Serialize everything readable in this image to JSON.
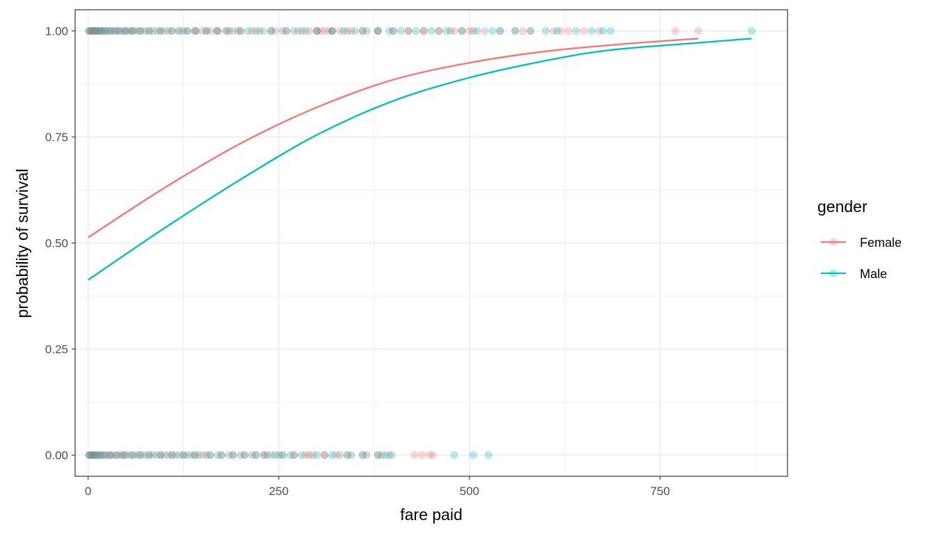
{
  "chart_data": {
    "type": "scatter",
    "title": "",
    "xlabel": "fare paid",
    "ylabel": "probability of survival",
    "xlim": [
      -17,
      917
    ],
    "ylim": [
      -0.05,
      1.05
    ],
    "x_ticks": [
      0,
      250,
      500,
      750
    ],
    "x_tick_labels": [
      "0",
      "250",
      "500",
      "750"
    ],
    "y_ticks": [
      0,
      0.25,
      0.5,
      0.75,
      1
    ],
    "y_tick_labels": [
      "0.00",
      "0.25",
      "0.50",
      "0.75",
      "1.00"
    ],
    "grid": true,
    "legend": {
      "title": "gender",
      "placement": "right"
    },
    "colors": {
      "Female": "#F8766D",
      "Male": "#00BFC4",
      "overlap": "#808080"
    },
    "series": [
      {
        "name": "Female",
        "color": "#F8766D",
        "fit_curve": {
          "x": [
            0,
            100,
            200,
            300,
            400,
            500,
            600,
            700,
            800
          ],
          "y": [
            0.513,
            0.63,
            0.735,
            0.82,
            0.885,
            0.925,
            0.952,
            0.969,
            0.982
          ]
        },
        "points_survived_x": [
          2,
          5,
          8,
          10,
          12,
          15,
          20,
          25,
          30,
          35,
          40,
          45,
          50,
          55,
          60,
          70,
          80,
          90,
          100,
          110,
          120,
          130,
          140,
          150,
          160,
          170,
          180,
          190,
          200,
          215,
          230,
          245,
          260,
          275,
          290,
          300,
          305,
          310,
          315,
          320,
          330,
          345,
          360,
          380,
          400,
          420,
          440,
          460,
          480,
          500,
          520,
          540,
          560,
          570,
          580,
          610,
          620,
          630,
          650,
          670,
          770,
          800
        ],
        "points_died_x": [
          2,
          5,
          8,
          12,
          18,
          25,
          30,
          40,
          45,
          50,
          60,
          70,
          80,
          90,
          100,
          110,
          120,
          130,
          140,
          150,
          160,
          175,
          190,
          205,
          220,
          232,
          240,
          255,
          270,
          285,
          295,
          310,
          325,
          340,
          360,
          380,
          395,
          428,
          438,
          448,
          452
        ]
      },
      {
        "name": "Male",
        "color": "#00BFC4",
        "fit_curve": {
          "x": [
            0,
            100,
            200,
            300,
            400,
            500,
            600,
            685,
            800,
            870
          ],
          "y": [
            0.413,
            0.535,
            0.65,
            0.755,
            0.835,
            0.89,
            0.93,
            0.955,
            0.972,
            0.982
          ]
        },
        "points_survived_x": [
          2,
          6,
          10,
          14,
          18,
          22,
          28,
          35,
          42,
          50,
          58,
          66,
          75,
          85,
          95,
          105,
          118,
          130,
          142,
          155,
          168,
          182,
          196,
          210,
          225,
          240,
          255,
          270,
          285,
          300,
          320,
          335,
          350,
          365,
          380,
          395,
          410,
          430,
          450,
          470,
          490,
          510,
          530,
          540,
          560,
          580,
          600,
          615,
          640,
          660,
          675,
          685,
          870
        ],
        "points_died_x": [
          2,
          6,
          10,
          15,
          20,
          28,
          36,
          45,
          55,
          65,
          75,
          85,
          95,
          105,
          115,
          125,
          135,
          145,
          160,
          175,
          190,
          205,
          220,
          235,
          245,
          255,
          265,
          280,
          300,
          320,
          340,
          360,
          380,
          390,
          398,
          480,
          505,
          525
        ]
      }
    ],
    "overlap_points": {
      "survived_x": [
        1,
        4,
        7,
        11,
        16,
        22,
        30,
        38,
        48,
        58,
        68,
        80,
        95,
        110,
        125,
        140,
        155,
        170,
        185,
        200,
        220,
        240,
        260,
        280,
        300,
        320,
        340,
        360,
        380,
        400,
        420,
        440,
        460,
        475,
        490,
        505
      ],
      "died_x": [
        1,
        4,
        7,
        11,
        16,
        22,
        30,
        38,
        48,
        58,
        68,
        80,
        95,
        110,
        125,
        140,
        155,
        170,
        185,
        200,
        215,
        230,
        250,
        270,
        290,
        310,
        330,
        345,
        365,
        385
      ]
    }
  }
}
